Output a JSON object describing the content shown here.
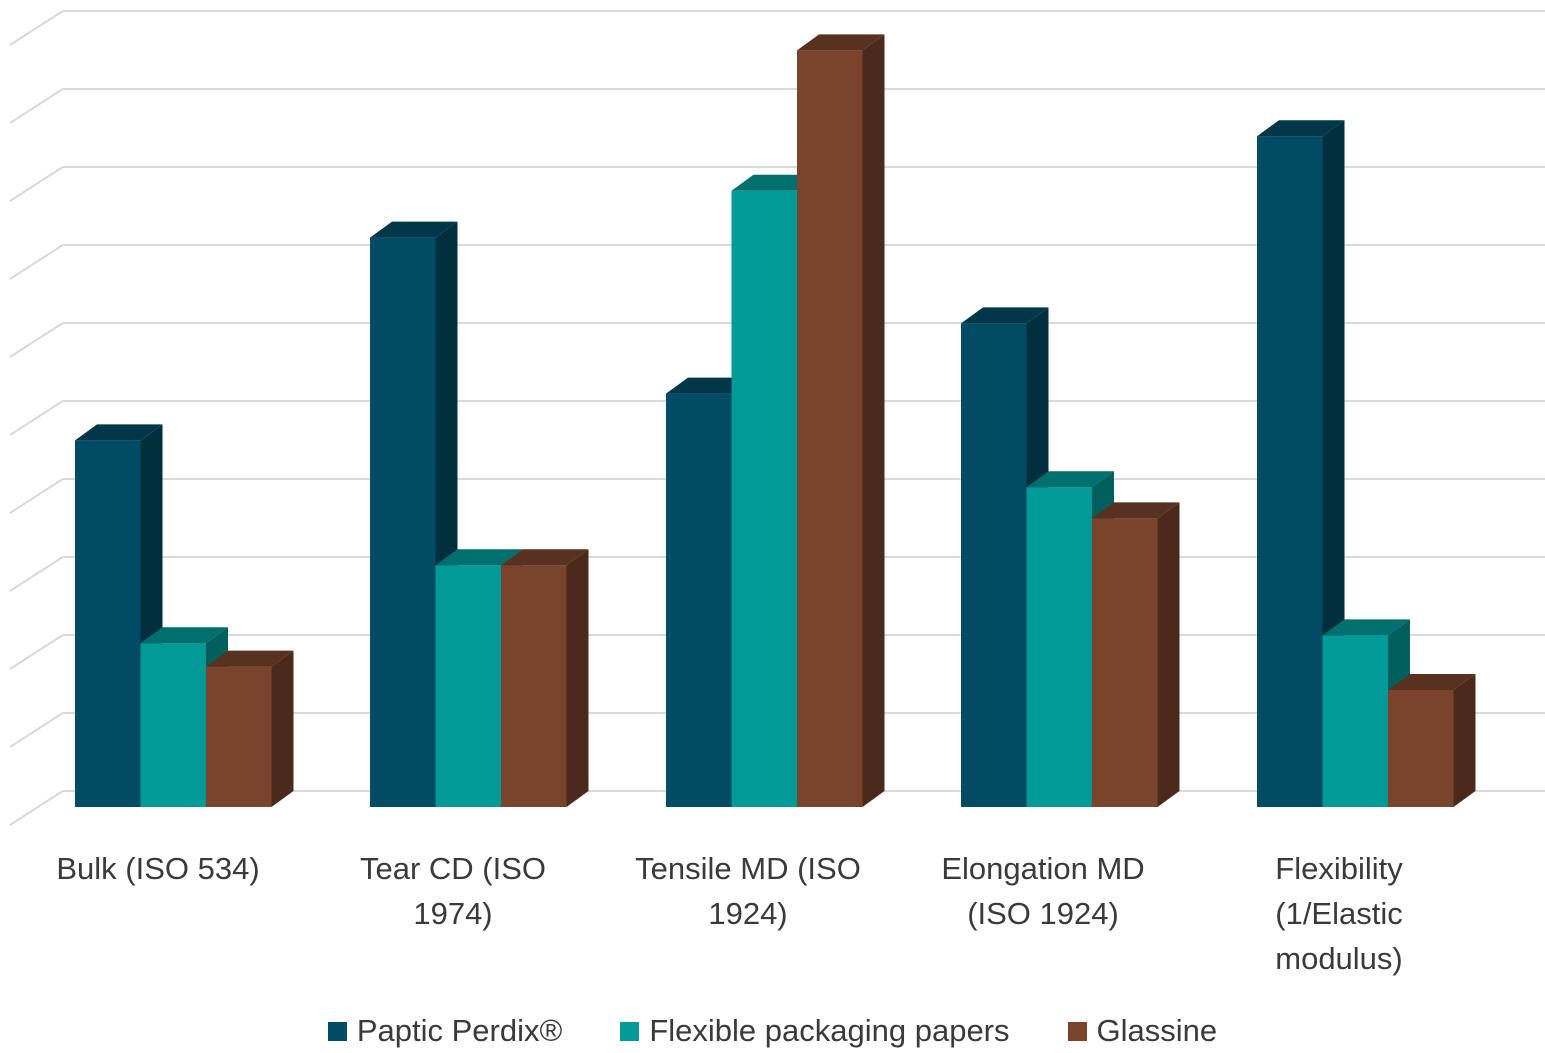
{
  "chart_data": {
    "type": "bar",
    "variant": "3d-clustered",
    "categories": [
      "Bulk (ISO 534)",
      "Tear CD (ISO 1974)",
      "Tensile MD (ISO 1924)",
      "Elongation MD (ISO 1924)",
      "Flexibility (1/Elastic modulus)"
    ],
    "series": [
      {
        "name": "Paptic Perdix®",
        "color": "#014c64",
        "values": [
          4.7,
          7.3,
          5.3,
          6.2,
          8.6
        ]
      },
      {
        "name": "Flexible packaging papers",
        "color": "#029a98",
        "values": [
          2.1,
          3.1,
          7.9,
          4.1,
          2.2
        ]
      },
      {
        "name": "Glassine",
        "color": "#7a442c",
        "values": [
          1.8,
          3.1,
          9.7,
          3.7,
          1.5
        ]
      }
    ],
    "ylim": [
      0,
      10
    ],
    "grid": true,
    "axis_labels_shown": false,
    "legend": "bottom"
  }
}
